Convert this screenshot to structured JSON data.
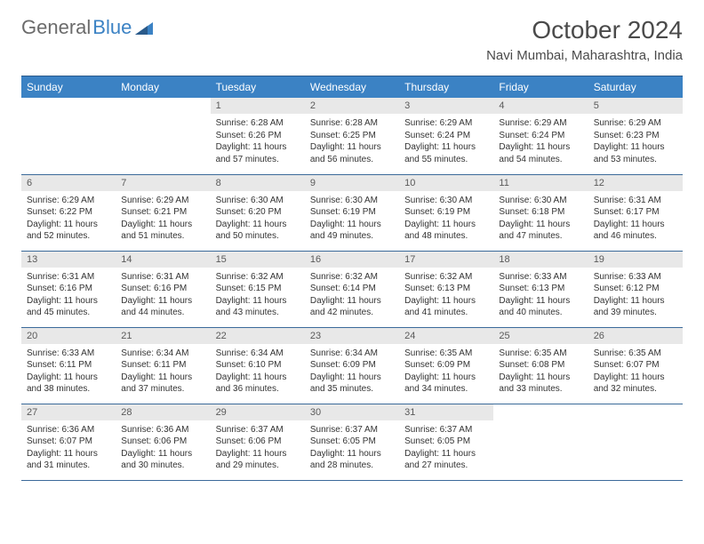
{
  "logo": {
    "text_gray": "General",
    "text_blue": "Blue"
  },
  "title": "October 2024",
  "location": "Navi Mumbai, Maharashtra, India",
  "colors": {
    "header_bg": "#3b82c4",
    "header_text": "#ffffff",
    "daynum_bg": "#e8e8e8",
    "body_text": "#333333",
    "row_border": "#3b6a9a",
    "title_text": "#4a4a4a",
    "logo_gray": "#6b6b6b",
    "logo_blue": "#3b82c4"
  },
  "typography": {
    "title_fontsize": 28,
    "location_fontsize": 15,
    "header_fontsize": 12,
    "daynum_fontsize": 11,
    "body_fontsize": 10
  },
  "day_headers": [
    "Sunday",
    "Monday",
    "Tuesday",
    "Wednesday",
    "Thursday",
    "Friday",
    "Saturday"
  ],
  "weeks": [
    [
      {
        "empty": true
      },
      {
        "empty": true
      },
      {
        "num": "1",
        "sunrise": "Sunrise: 6:28 AM",
        "sunset": "Sunset: 6:26 PM",
        "daylight": "Daylight: 11 hours and 57 minutes."
      },
      {
        "num": "2",
        "sunrise": "Sunrise: 6:28 AM",
        "sunset": "Sunset: 6:25 PM",
        "daylight": "Daylight: 11 hours and 56 minutes."
      },
      {
        "num": "3",
        "sunrise": "Sunrise: 6:29 AM",
        "sunset": "Sunset: 6:24 PM",
        "daylight": "Daylight: 11 hours and 55 minutes."
      },
      {
        "num": "4",
        "sunrise": "Sunrise: 6:29 AM",
        "sunset": "Sunset: 6:24 PM",
        "daylight": "Daylight: 11 hours and 54 minutes."
      },
      {
        "num": "5",
        "sunrise": "Sunrise: 6:29 AM",
        "sunset": "Sunset: 6:23 PM",
        "daylight": "Daylight: 11 hours and 53 minutes."
      }
    ],
    [
      {
        "num": "6",
        "sunrise": "Sunrise: 6:29 AM",
        "sunset": "Sunset: 6:22 PM",
        "daylight": "Daylight: 11 hours and 52 minutes."
      },
      {
        "num": "7",
        "sunrise": "Sunrise: 6:29 AM",
        "sunset": "Sunset: 6:21 PM",
        "daylight": "Daylight: 11 hours and 51 minutes."
      },
      {
        "num": "8",
        "sunrise": "Sunrise: 6:30 AM",
        "sunset": "Sunset: 6:20 PM",
        "daylight": "Daylight: 11 hours and 50 minutes."
      },
      {
        "num": "9",
        "sunrise": "Sunrise: 6:30 AM",
        "sunset": "Sunset: 6:19 PM",
        "daylight": "Daylight: 11 hours and 49 minutes."
      },
      {
        "num": "10",
        "sunrise": "Sunrise: 6:30 AM",
        "sunset": "Sunset: 6:19 PM",
        "daylight": "Daylight: 11 hours and 48 minutes."
      },
      {
        "num": "11",
        "sunrise": "Sunrise: 6:30 AM",
        "sunset": "Sunset: 6:18 PM",
        "daylight": "Daylight: 11 hours and 47 minutes."
      },
      {
        "num": "12",
        "sunrise": "Sunrise: 6:31 AM",
        "sunset": "Sunset: 6:17 PM",
        "daylight": "Daylight: 11 hours and 46 minutes."
      }
    ],
    [
      {
        "num": "13",
        "sunrise": "Sunrise: 6:31 AM",
        "sunset": "Sunset: 6:16 PM",
        "daylight": "Daylight: 11 hours and 45 minutes."
      },
      {
        "num": "14",
        "sunrise": "Sunrise: 6:31 AM",
        "sunset": "Sunset: 6:16 PM",
        "daylight": "Daylight: 11 hours and 44 minutes."
      },
      {
        "num": "15",
        "sunrise": "Sunrise: 6:32 AM",
        "sunset": "Sunset: 6:15 PM",
        "daylight": "Daylight: 11 hours and 43 minutes."
      },
      {
        "num": "16",
        "sunrise": "Sunrise: 6:32 AM",
        "sunset": "Sunset: 6:14 PM",
        "daylight": "Daylight: 11 hours and 42 minutes."
      },
      {
        "num": "17",
        "sunrise": "Sunrise: 6:32 AM",
        "sunset": "Sunset: 6:13 PM",
        "daylight": "Daylight: 11 hours and 41 minutes."
      },
      {
        "num": "18",
        "sunrise": "Sunrise: 6:33 AM",
        "sunset": "Sunset: 6:13 PM",
        "daylight": "Daylight: 11 hours and 40 minutes."
      },
      {
        "num": "19",
        "sunrise": "Sunrise: 6:33 AM",
        "sunset": "Sunset: 6:12 PM",
        "daylight": "Daylight: 11 hours and 39 minutes."
      }
    ],
    [
      {
        "num": "20",
        "sunrise": "Sunrise: 6:33 AM",
        "sunset": "Sunset: 6:11 PM",
        "daylight": "Daylight: 11 hours and 38 minutes."
      },
      {
        "num": "21",
        "sunrise": "Sunrise: 6:34 AM",
        "sunset": "Sunset: 6:11 PM",
        "daylight": "Daylight: 11 hours and 37 minutes."
      },
      {
        "num": "22",
        "sunrise": "Sunrise: 6:34 AM",
        "sunset": "Sunset: 6:10 PM",
        "daylight": "Daylight: 11 hours and 36 minutes."
      },
      {
        "num": "23",
        "sunrise": "Sunrise: 6:34 AM",
        "sunset": "Sunset: 6:09 PM",
        "daylight": "Daylight: 11 hours and 35 minutes."
      },
      {
        "num": "24",
        "sunrise": "Sunrise: 6:35 AM",
        "sunset": "Sunset: 6:09 PM",
        "daylight": "Daylight: 11 hours and 34 minutes."
      },
      {
        "num": "25",
        "sunrise": "Sunrise: 6:35 AM",
        "sunset": "Sunset: 6:08 PM",
        "daylight": "Daylight: 11 hours and 33 minutes."
      },
      {
        "num": "26",
        "sunrise": "Sunrise: 6:35 AM",
        "sunset": "Sunset: 6:07 PM",
        "daylight": "Daylight: 11 hours and 32 minutes."
      }
    ],
    [
      {
        "num": "27",
        "sunrise": "Sunrise: 6:36 AM",
        "sunset": "Sunset: 6:07 PM",
        "daylight": "Daylight: 11 hours and 31 minutes."
      },
      {
        "num": "28",
        "sunrise": "Sunrise: 6:36 AM",
        "sunset": "Sunset: 6:06 PM",
        "daylight": "Daylight: 11 hours and 30 minutes."
      },
      {
        "num": "29",
        "sunrise": "Sunrise: 6:37 AM",
        "sunset": "Sunset: 6:06 PM",
        "daylight": "Daylight: 11 hours and 29 minutes."
      },
      {
        "num": "30",
        "sunrise": "Sunrise: 6:37 AM",
        "sunset": "Sunset: 6:05 PM",
        "daylight": "Daylight: 11 hours and 28 minutes."
      },
      {
        "num": "31",
        "sunrise": "Sunrise: 6:37 AM",
        "sunset": "Sunset: 6:05 PM",
        "daylight": "Daylight: 11 hours and 27 minutes."
      },
      {
        "empty": true
      },
      {
        "empty": true
      }
    ]
  ]
}
